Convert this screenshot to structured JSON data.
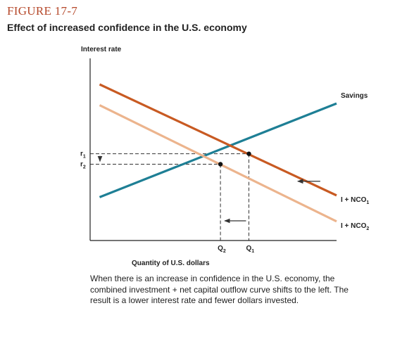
{
  "figure": {
    "label": "FIGURE 17-7",
    "title": "Effect of increased confidence in the U.S. economy"
  },
  "caption": "When there is an increase in confidence in the U.S. economy, the combined investment + net capital outflow curve shifts to the left. The result is a lower interest rate and fewer dollars invested.",
  "chart_data": {
    "type": "line",
    "ylabel": "Interest rate",
    "xlabel": "Quantity of U.S. dollars",
    "series": [
      {
        "name": "Savings",
        "x": [
          0,
          10
        ],
        "y": [
          2.5,
          7.9
        ],
        "color": "#1e7f95"
      },
      {
        "name": "I + NCO",
        "sub": "1",
        "x": [
          0,
          10
        ],
        "y": [
          9.0,
          2.6
        ],
        "color": "#c85a22"
      },
      {
        "name": "I + NCO",
        "sub": "2",
        "x": [
          0,
          10
        ],
        "y": [
          7.8,
          1.1
        ],
        "color": "#ecb48d"
      }
    ],
    "equilibria": [
      {
        "x": 6.3,
        "y": 5.0,
        "xtick": "Q",
        "xsub": "1",
        "ytick": "r",
        "ysub": "1"
      },
      {
        "x": 5.1,
        "y": 4.4,
        "xtick": "Q",
        "xsub": "2",
        "ytick": "r",
        "ysub": "2"
      }
    ],
    "xlim": [
      -0.4,
      10
    ],
    "ylim": [
      0,
      10.5
    ],
    "shift": "left"
  },
  "colors": {
    "axis": "#222222",
    "dash": "#333333",
    "arrow": "#333333"
  }
}
